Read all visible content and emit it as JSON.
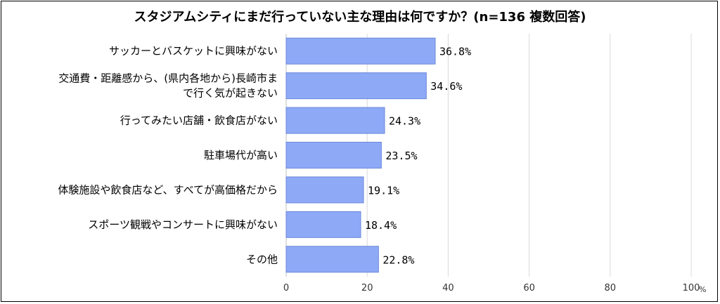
{
  "chart_data": {
    "type": "bar",
    "orientation": "horizontal",
    "title": "スタジアムシティにまだ行っていない主な理由は何ですか？(n=136 複数回答)",
    "categories": [
      [
        "サッカーとバスケットに興味がない"
      ],
      [
        "交通費・距離感から、(県内各地から)長崎市ま",
        "で行く気が起きない"
      ],
      [
        "行ってみたい店舗・飲食店がない"
      ],
      [
        "駐車場代が高い"
      ],
      [
        "体験施設や飲食店など、すべてが高価格だから"
      ],
      [
        "スポーツ観戦やコンサートに興味がない"
      ],
      [
        "その他"
      ]
    ],
    "values": [
      36.8,
      34.6,
      24.3,
      23.5,
      19.1,
      18.4,
      22.8
    ],
    "value_labels": [
      "36.8%",
      "34.6%",
      "24.3%",
      "23.5%",
      "19.1%",
      "18.4%",
      "22.8%"
    ],
    "xlim": [
      0,
      100
    ],
    "xticks": [
      0,
      20,
      40,
      60,
      80,
      100
    ],
    "x_unit": "%",
    "grid": true,
    "bar_color": "#8eaaf7",
    "bar_edge_color": "#6a86d8"
  }
}
